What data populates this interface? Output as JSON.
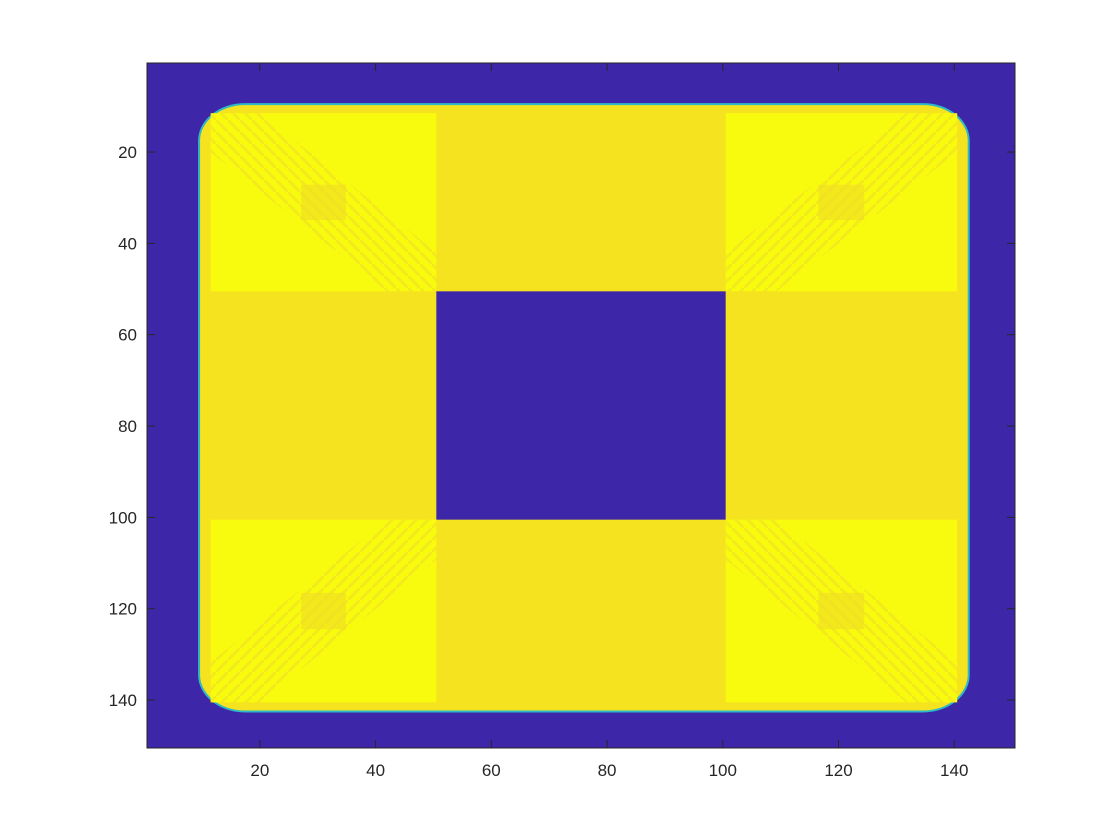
{
  "chart_data": {
    "type": "heatmap",
    "title": "",
    "xlabel": "",
    "ylabel": "",
    "xlim": [
      0.5,
      150.5
    ],
    "ylim": [
      0.5,
      150.5
    ],
    "y_direction": "reversed",
    "grid": false,
    "colormap": "parula",
    "x_ticks": [
      20,
      40,
      60,
      80,
      100,
      120,
      140
    ],
    "y_ticks": [
      20,
      40,
      60,
      80,
      100,
      120,
      140
    ],
    "background_value_color": "#3e26a8",
    "regions": [
      {
        "name": "outer-background",
        "x": [
          1,
          150
        ],
        "y": [
          1,
          150
        ],
        "color": "#3e26a8"
      },
      {
        "name": "rounded-frame",
        "x": [
          10,
          142
        ],
        "y": [
          10,
          142
        ],
        "corner_radius": 8,
        "color": "#f5e31f"
      },
      {
        "name": "corner-top-left",
        "x": [
          12,
          50
        ],
        "y": [
          12,
          50
        ],
        "color": "#f9fb0e"
      },
      {
        "name": "corner-top-right",
        "x": [
          101,
          140
        ],
        "y": [
          12,
          50
        ],
        "color": "#f9fb0e"
      },
      {
        "name": "corner-bottom-left",
        "x": [
          12,
          50
        ],
        "y": [
          101,
          140
        ],
        "color": "#f9fb0e"
      },
      {
        "name": "corner-bottom-right",
        "x": [
          101,
          140
        ],
        "y": [
          101,
          140
        ],
        "color": "#f9fb0e"
      },
      {
        "name": "center-hole",
        "x": [
          51,
          100
        ],
        "y": [
          51,
          100
        ],
        "color": "#3e26a8"
      }
    ]
  }
}
